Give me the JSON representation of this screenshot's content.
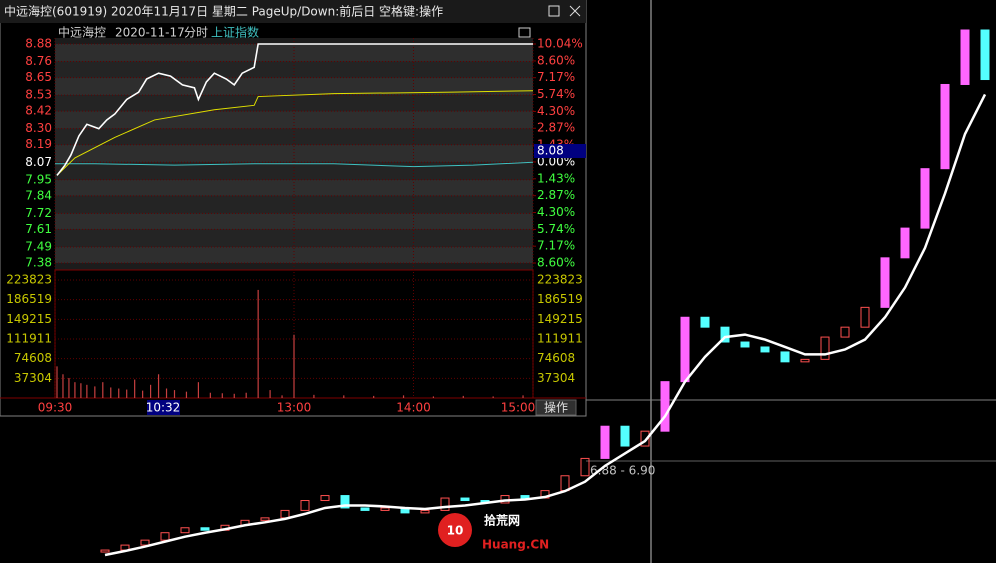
{
  "window": {
    "title": "中远海控(601919) 2020年11月17日 星期二 PageUp/Down:前后日 空格键:操作",
    "button": "操作"
  },
  "chart_data": [
    {
      "type": "intraday",
      "stock": "中远海控",
      "date": "2020-11-17",
      "mode": "分时",
      "index_name": "上证指数",
      "xlim": [
        0,
        240
      ],
      "xticks": [
        {
          "value": 0,
          "label": "09:30"
        },
        {
          "value": 120,
          "label": "13:00"
        },
        {
          "value": 180,
          "label": "14:00"
        },
        {
          "value": 240,
          "label": "15:00"
        }
      ],
      "ylim": [
        7.38,
        8.88
      ],
      "yticks": [
        8.88,
        8.76,
        8.65,
        8.53,
        8.42,
        {
          "value": 8.3,
          "label": "8.30"
        },
        8.19,
        8.07,
        7.95,
        7.84,
        7.72,
        7.61,
        7.49,
        7.38
      ],
      "y2lim": [
        -8.6,
        10.04
      ],
      "y2ticks": [
        {
          "value": 10.04,
          "label": "10.04%"
        },
        {
          "value": 8.6,
          "label": "8.60%"
        },
        {
          "value": 7.17,
          "label": "7.17%"
        },
        {
          "value": 5.74,
          "label": "5.74%"
        },
        {
          "value": 4.3,
          "label": "4.30%"
        },
        {
          "value": 2.87,
          "label": "2.87%"
        },
        {
          "value": 1.43,
          "label": "1.43%"
        },
        {
          "value": 0,
          "label": "0.00%"
        },
        {
          "value": -1.43,
          "label": "1.43%"
        },
        {
          "value": -2.87,
          "label": "2.87%"
        },
        {
          "value": -4.3,
          "label": "4.30%"
        },
        {
          "value": -5.74,
          "label": "5.74%"
        },
        {
          "value": -7.17,
          "label": "7.17%"
        },
        {
          "value": -8.6,
          "label": "8.60%"
        }
      ],
      "price": {
        "color": "#ffffff",
        "x": [
          1,
          5,
          8,
          12,
          16,
          22,
          26,
          30,
          36,
          42,
          46,
          52,
          58,
          64,
          70,
          72,
          76,
          80,
          86,
          90,
          94,
          100,
          102,
          240
        ],
        "values": [
          7.98,
          8.05,
          8.12,
          8.25,
          8.33,
          8.3,
          8.36,
          8.4,
          8.5,
          8.55,
          8.64,
          8.68,
          8.66,
          8.6,
          8.58,
          8.5,
          8.62,
          8.68,
          8.64,
          8.6,
          8.68,
          8.72,
          8.88,
          8.88
        ]
      },
      "average": {
        "color": "#e0e000",
        "x": [
          1,
          10,
          30,
          50,
          80,
          100,
          102,
          140,
          200,
          240
        ],
        "values": [
          7.98,
          8.1,
          8.24,
          8.36,
          8.43,
          8.46,
          8.52,
          8.54,
          8.55,
          8.56
        ]
      },
      "index": {
        "color": "#40c0c0",
        "x": [
          0,
          20,
          60,
          100,
          140,
          180,
          210,
          240
        ],
        "values": [
          8.06,
          8.06,
          8.05,
          8.06,
          8.06,
          8.04,
          8.05,
          8.07
        ]
      },
      "volume": {
        "color": "#c84040",
        "ylim": [
          0,
          223823
        ],
        "yticks": [
          223823,
          186519,
          149215,
          111911,
          74608,
          37304
        ],
        "x": [
          1,
          4,
          7,
          10,
          13,
          16,
          20,
          24,
          28,
          32,
          36,
          40,
          44,
          48,
          52,
          56,
          60,
          66,
          72,
          78,
          84,
          90,
          96,
          102,
          108,
          114,
          120,
          130,
          145,
          160,
          175,
          190,
          205,
          220,
          235
        ],
        "values": [
          60000,
          45000,
          38000,
          30000,
          28000,
          25000,
          22000,
          30000,
          20000,
          18000,
          16000,
          35000,
          14000,
          25000,
          45000,
          18000,
          15000,
          12000,
          30000,
          10000,
          9000,
          8000,
          10000,
          205000,
          15000,
          5000,
          120000,
          6000,
          5000,
          4000,
          5000,
          3000,
          4000,
          3000,
          5000
        ]
      },
      "crosshair": {
        "time": "10:32",
        "price": "8.08"
      }
    },
    {
      "type": "candlestick",
      "up_color": "#ff5050",
      "down_color": "#54ffff",
      "values": [
        5.1,
        5.2,
        5.3,
        5.45,
        5.55,
        5.5,
        5.6,
        5.7,
        5.75,
        5.9,
        6.1,
        6.2,
        5.95,
        5.9,
        5.95,
        5.85,
        5.9,
        6.15,
        6.1,
        6.05,
        6.2,
        6.15,
        6.3,
        6.6,
        6.95,
        7.6,
        7.2,
        7.5,
        8.5,
        9.8,
        9.6,
        9.3,
        9.2,
        9.1,
        8.9,
        8.95,
        9.4,
        9.6,
        10.0,
        11.0,
        11.6,
        12.8,
        14.5,
        15.6,
        14.6
      ],
      "ma": {
        "color": "#ffffff",
        "values": [
          5.0,
          5.08,
          5.17,
          5.27,
          5.37,
          5.45,
          5.52,
          5.6,
          5.66,
          5.73,
          5.83,
          5.95,
          6.0,
          6.0,
          5.98,
          5.95,
          5.93,
          5.97,
          6.0,
          6.05,
          6.1,
          6.12,
          6.17,
          6.29,
          6.48,
          6.8,
          7.05,
          7.3,
          7.8,
          8.5,
          9.0,
          9.4,
          9.45,
          9.35,
          9.2,
          9.05,
          9.05,
          9.15,
          9.35,
          9.8,
          10.4,
          11.2,
          12.3,
          13.5,
          14.3
        ]
      },
      "annotation": "6.88 - 6.90"
    }
  ],
  "watermark": {
    "number": "10",
    "name": "拾荒网",
    "site": "Huang.CN"
  }
}
